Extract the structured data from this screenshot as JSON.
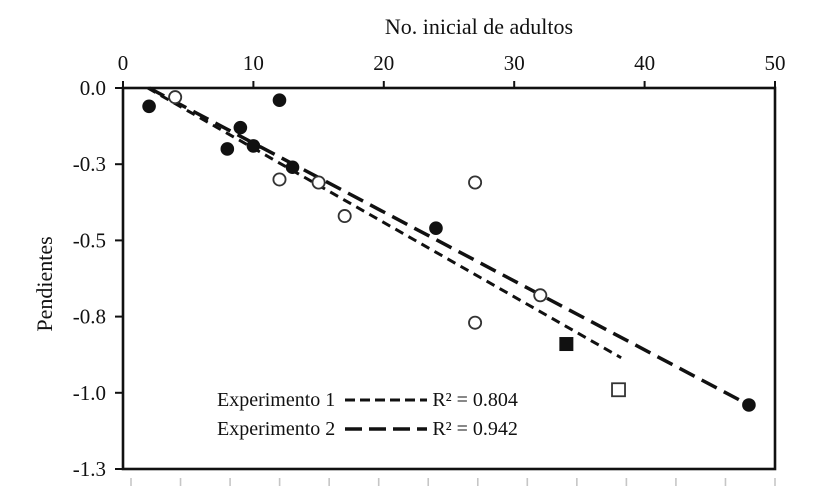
{
  "chart_data": {
    "type": "scatter",
    "title": "",
    "xlabel": "No. inicial de adultos",
    "xlabel_position": "top",
    "ylabel": "Pendientes",
    "xlim": [
      0,
      50
    ],
    "ylim": [
      -1.25,
      0
    ],
    "grid": false,
    "x_ticks": [
      {
        "value": 0,
        "label": "0"
      },
      {
        "value": 10,
        "label": "10"
      },
      {
        "value": 20,
        "label": "20"
      },
      {
        "value": 30,
        "label": "30"
      },
      {
        "value": 40,
        "label": "40"
      },
      {
        "value": 50,
        "label": "50"
      }
    ],
    "y_ticks": [
      {
        "value": 0,
        "label": "0.0"
      },
      {
        "value": -0.25,
        "label": "-0.3"
      },
      {
        "value": -0.5,
        "label": "-0.5"
      },
      {
        "value": -0.75,
        "label": "-0.8"
      },
      {
        "value": -1.0,
        "label": "-1.0"
      },
      {
        "value": -1.25,
        "label": "-1.3"
      }
    ],
    "series": [
      {
        "name": "filled-circles",
        "marker": "filled-circle",
        "points": [
          [
            2,
            -0.06
          ],
          [
            12,
            -0.04
          ],
          [
            9,
            -0.13
          ],
          [
            10,
            -0.19
          ],
          [
            8,
            -0.2
          ],
          [
            13,
            -0.26
          ],
          [
            24,
            -0.46
          ],
          [
            48,
            -1.04
          ]
        ]
      },
      {
        "name": "open-circles",
        "marker": "open-circle",
        "points": [
          [
            4,
            -0.03
          ],
          [
            12,
            -0.3
          ],
          [
            15,
            -0.31
          ],
          [
            17,
            -0.42
          ],
          [
            27,
            -0.31
          ],
          [
            32,
            -0.68
          ],
          [
            27,
            -0.77
          ]
        ]
      },
      {
        "name": "filled-square",
        "marker": "filled-square",
        "points": [
          [
            34,
            -0.84
          ]
        ]
      },
      {
        "name": "open-square",
        "marker": "open-square",
        "points": [
          [
            38,
            -0.99
          ]
        ]
      }
    ],
    "trendlines": [
      {
        "name": "Experimento 1",
        "style": "short-dash",
        "x1": 1.9,
        "y1": 0.0,
        "x2": 38.2,
        "y2": -0.885,
        "r2": "R² = 0.804"
      },
      {
        "name": "Experimento 2",
        "style": "long-dash",
        "x1": 2.0,
        "y1": 0.0,
        "x2": 48.4,
        "y2": -1.049,
        "r2": "R² = 0.942"
      }
    ],
    "legend": {
      "position": "inside-bottom-left",
      "rows": [
        {
          "label": "Experimento 1",
          "line_style": "short-dash",
          "r2": "R² = 0.804"
        },
        {
          "label": "Experimento 2",
          "line_style": "long-dash",
          "r2": "R² = 0.942"
        }
      ]
    },
    "colors": {
      "foreground": "#111111",
      "background": "#ffffff",
      "minor_tick": "#c6c6c6",
      "open_marker_stroke": "#333333"
    }
  }
}
